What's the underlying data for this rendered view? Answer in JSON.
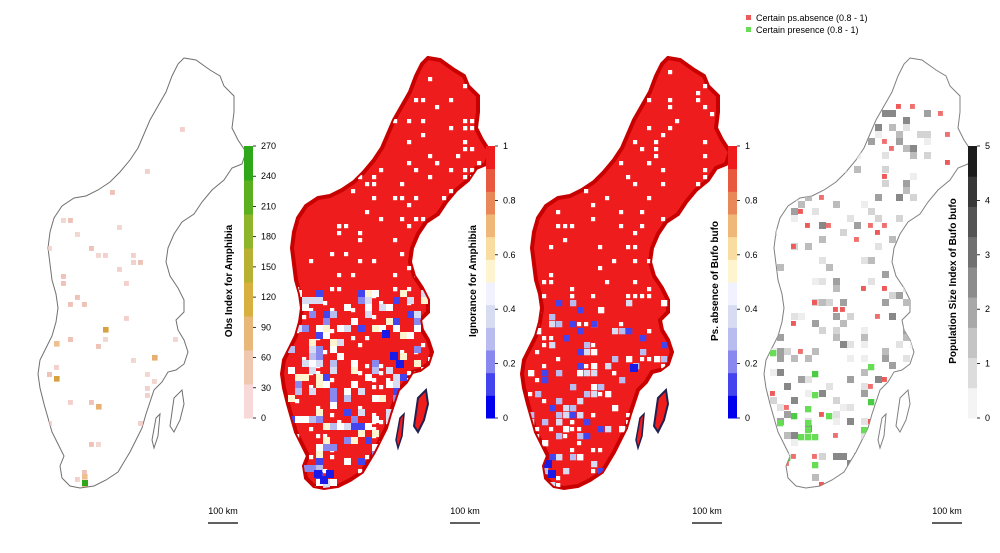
{
  "panels": [
    {
      "id": "obs-index",
      "map_style": "sparse",
      "colorbar": {
        "title": "Obs Index  for Amphibia",
        "ticks": [
          "0",
          "30",
          "60",
          "90",
          "120",
          "150",
          "180",
          "210",
          "240",
          "270"
        ],
        "gradient": [
          "#f7d9d9",
          "#f0c8b0",
          "#e8b87a",
          "#d8b040",
          "#b8b030",
          "#8fb52a",
          "#5cb020",
          "#2ea818"
        ]
      },
      "scale_label": "100 km"
    },
    {
      "id": "ignorance",
      "map_style": "filled",
      "colorbar": {
        "title": "Ignorance  for Amphibia",
        "ticks": [
          "0",
          "0.2",
          "0.4",
          "0.6",
          "0.8",
          "1"
        ],
        "gradient": [
          "#0000ee",
          "#4444ee",
          "#8888ee",
          "#b8bcee",
          "#d8dcf2",
          "#f2f2ff",
          "#fff4d0",
          "#f8dca0",
          "#f0b878",
          "#e88858",
          "#e85a40",
          "#ee1c1c"
        ]
      },
      "scale_label": "100 km"
    },
    {
      "id": "ps-absence",
      "map_style": "filled",
      "colorbar": {
        "title": "Ps. absence of Bufo bufo",
        "ticks": [
          "0",
          "0.2",
          "0.4",
          "0.6",
          "0.8",
          "1"
        ],
        "gradient": [
          "#0000ee",
          "#4444ee",
          "#8888ee",
          "#b8bcee",
          "#d8dcf2",
          "#f2f2ff",
          "#fff4d0",
          "#f8dca0",
          "#f0b878",
          "#e88858",
          "#e85a40",
          "#ee1c1c"
        ]
      },
      "scale_label": "100 km"
    },
    {
      "id": "population-size",
      "map_style": "grey",
      "colorbar": {
        "title": "Population Size Index of Bufo bufo",
        "ticks": [
          "0",
          "1",
          "2",
          "3",
          "4",
          "5"
        ],
        "gradient": [
          "#f4f4f4",
          "#dcdcdc",
          "#c4c4c4",
          "#a8a8a8",
          "#8c8c8c",
          "#707070",
          "#545454",
          "#383838",
          "#1c1c1c"
        ]
      },
      "scale_label": "100 km"
    }
  ],
  "legend": {
    "items": [
      {
        "label": "Certain ps.absence (0.8 - 1)",
        "color": "#ee5a5a"
      },
      {
        "label": "Certain presence (0.8 - 1)",
        "color": "#66dd55"
      }
    ]
  },
  "colors": {
    "outline": "#707070",
    "map_red": "#ee1c1c",
    "coast_dark": "#202050"
  }
}
